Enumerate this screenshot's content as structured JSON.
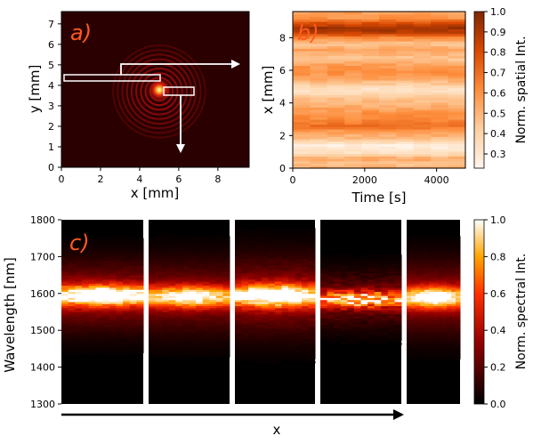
{
  "chart_data": [
    {
      "panel": "a)",
      "type": "heatmap",
      "xlabel": "x [mm]",
      "ylabel": "y [mm]",
      "xlim": [
        0,
        9.6
      ],
      "ylim": [
        0,
        7.6
      ],
      "xticks": [
        "0",
        "2",
        "4",
        "6",
        "8"
      ],
      "yticks": [
        "0",
        "1",
        "2",
        "3",
        "4",
        "5",
        "6",
        "7"
      ],
      "spot_center": [
        5.0,
        3.7
      ],
      "line_segment_y": 4.4,
      "line_segment_x_range": [
        0.2,
        5.0
      ],
      "small_box_y": 3.6,
      "small_box_x_range": [
        5.0,
        6.8
      ],
      "bg_color": "#2a0000",
      "ring_color": "#cc1010",
      "arrow_color": "#ffffff"
    },
    {
      "panel": "b)",
      "type": "heatmap",
      "xlabel": "Time [s]",
      "ylabel": "x [mm]",
      "xlim": [
        0,
        4800
      ],
      "ylim": [
        0,
        9.6
      ],
      "xticks": [
        "0",
        "2000",
        "4000"
      ],
      "yticks": [
        "0",
        "2",
        "4",
        "6",
        "8"
      ],
      "colorbar_label": "Norm. spatial Int.",
      "colorbar_range": [
        0.23,
        1.0
      ],
      "colorbar_ticks": [
        "0.3",
        "0.4",
        "0.5",
        "0.6",
        "0.7",
        "0.8",
        "0.9",
        "1.0"
      ],
      "time_columns": 10,
      "profile_x": [
        0.0,
        0.3,
        0.6,
        0.9,
        1.2,
        1.4,
        1.6,
        1.9,
        2.2,
        2.6,
        3.0,
        3.4,
        3.8,
        4.2,
        4.5,
        4.8,
        5.1,
        5.5,
        5.9,
        6.3,
        6.7,
        7.0,
        7.3,
        7.6,
        8.0,
        8.3,
        8.6,
        8.9,
        9.2,
        9.6
      ],
      "profile_v": [
        0.55,
        0.45,
        0.55,
        0.35,
        0.3,
        0.25,
        0.35,
        0.5,
        0.55,
        0.7,
        0.62,
        0.6,
        0.52,
        0.48,
        0.4,
        0.3,
        0.4,
        0.55,
        0.6,
        0.58,
        0.45,
        0.5,
        0.55,
        0.45,
        0.6,
        0.85,
        0.95,
        0.8,
        0.6,
        0.55
      ]
    },
    {
      "panel": "c)",
      "type": "heatmap",
      "xlabel": "x",
      "ylabel": "Wavelength [nm]",
      "ylim": [
        1300,
        1800
      ],
      "yticks": [
        "1300",
        "1400",
        "1500",
        "1600",
        "1700",
        "1800"
      ],
      "colorbar_label": "Norm. spectral Int.",
      "colorbar_range": [
        0.0,
        1.0
      ],
      "colorbar_ticks": [
        "0.0",
        "0.2",
        "0.4",
        "0.6",
        "0.8",
        "1.0"
      ],
      "subpanels": [
        {
          "center": 1595,
          "width": 28,
          "peak": 0.98,
          "noise": 0.25
        },
        {
          "center": 1592,
          "width": 30,
          "peak": 0.82,
          "noise": 0.22
        },
        {
          "center": 1595,
          "width": 32,
          "peak": 0.92,
          "noise": 0.28
        },
        {
          "center": 1585,
          "width": 22,
          "peak": 0.75,
          "noise": 0.6
        },
        {
          "center": 1590,
          "width": 30,
          "peak": 0.88,
          "noise": 0.15
        }
      ]
    }
  ]
}
